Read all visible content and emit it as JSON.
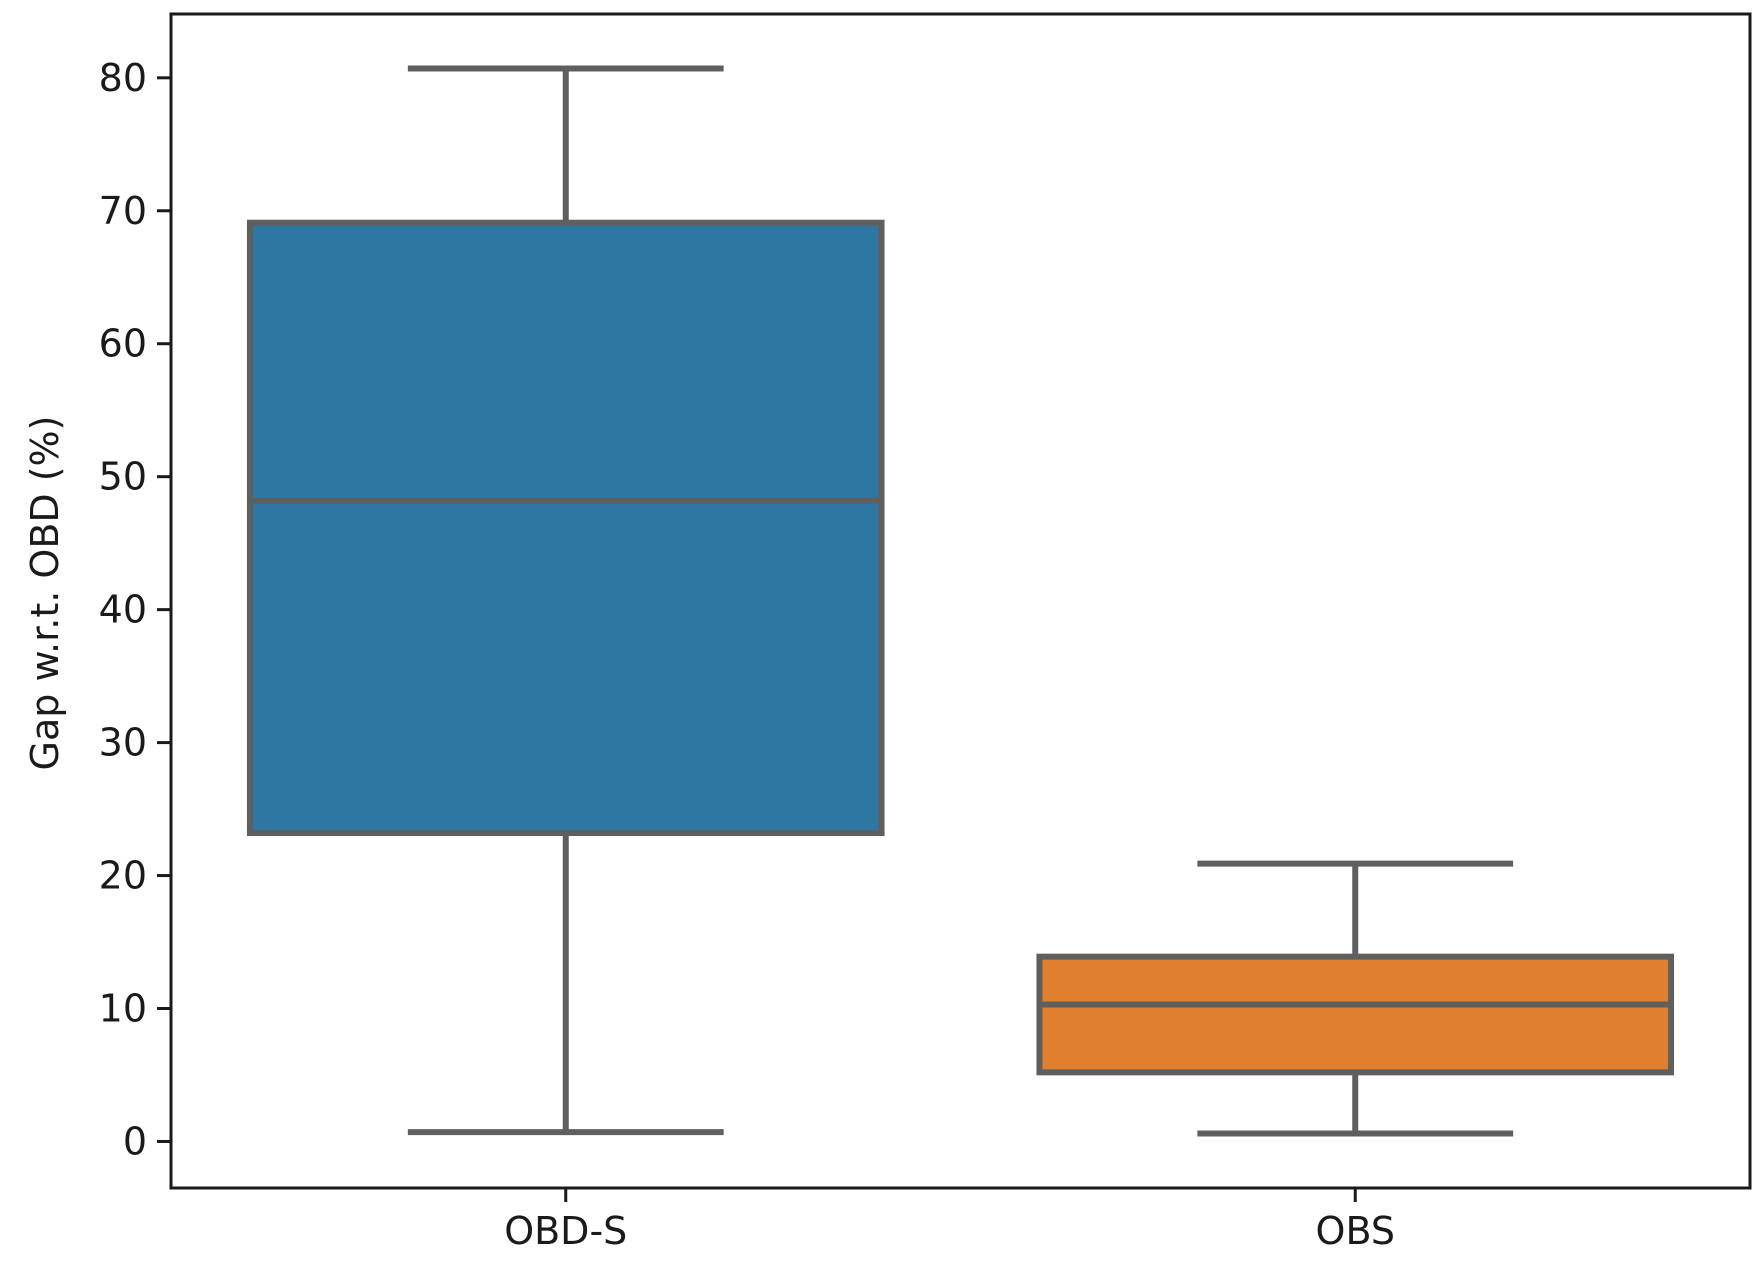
{
  "chart_data": {
    "type": "box",
    "title": "",
    "xlabel": "",
    "ylabel": "Gap w.r.t. OBD (%)",
    "ylim": [
      -3.5,
      84.8
    ],
    "yticks": [
      0,
      10,
      20,
      30,
      40,
      50,
      60,
      70,
      80
    ],
    "categories": [
      "OBD-S",
      "OBS"
    ],
    "boxes": [
      {
        "name": "OBD-S",
        "whisker_low": 0.7,
        "q1": 23.2,
        "median": 48.2,
        "q3": 69.1,
        "whisker_high": 80.7,
        "color": "#2e76a3"
      },
      {
        "name": "OBS",
        "whisker_low": 0.6,
        "q1": 5.2,
        "median": 10.3,
        "q3": 13.9,
        "whisker_high": 20.9,
        "color": "#e07f2c"
      }
    ],
    "grid": false,
    "legend": "none",
    "edge_color": "#5f5f5f"
  }
}
